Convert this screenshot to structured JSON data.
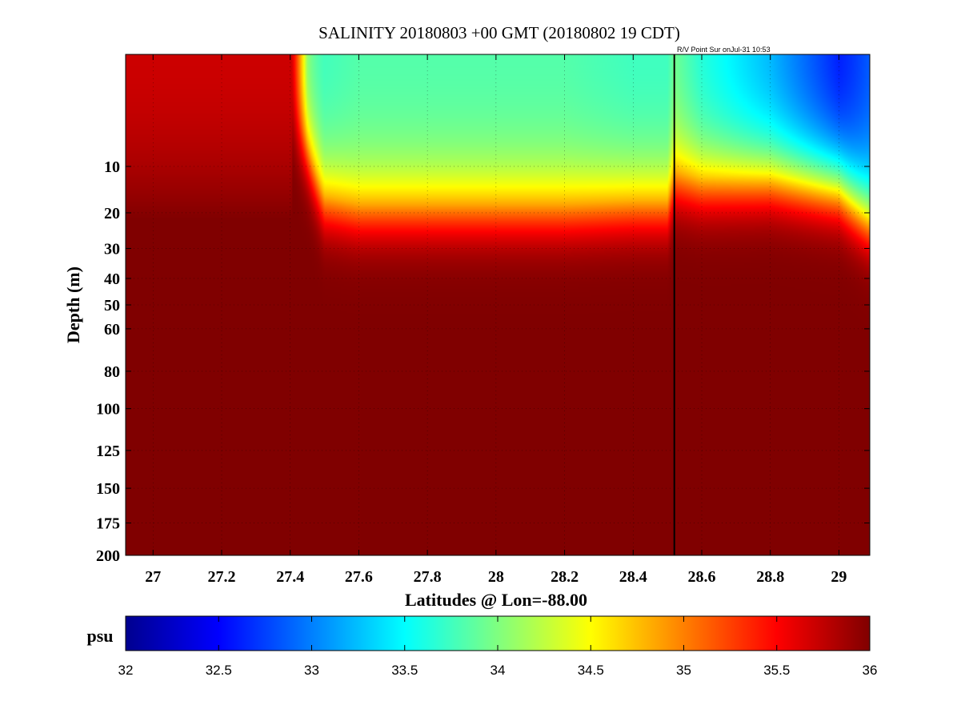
{
  "chart_data": {
    "type": "heatmap",
    "title": "SALINITY 20180803 +00 GMT (20180802 19 CDT)",
    "annotation": "R/V Point Sur onJul-31 10:53",
    "xlabel": "Latitudes @ Lon=-88.00",
    "ylabel": "Depth (m)",
    "x_ticks": [
      27,
      27.2,
      27.4,
      27.6,
      27.8,
      28,
      28.2,
      28.4,
      28.6,
      28.8,
      29
    ],
    "x_tick_labels": [
      "27",
      "27.2",
      "27.4",
      "27.6",
      "27.8",
      "28",
      "28.2",
      "28.4",
      "28.6",
      "28.8",
      "29"
    ],
    "xlim": [
      26.92,
      29.09
    ],
    "y_ticks": [
      10,
      20,
      30,
      40,
      50,
      60,
      80,
      100,
      125,
      150,
      175,
      200
    ],
    "y_tick_labels": [
      "10",
      "20",
      "30",
      "40",
      "50",
      "60",
      "80",
      "100",
      "125",
      "150",
      "175",
      "200"
    ],
    "ylim": [
      0,
      200
    ],
    "y_scale": "sqrt",
    "y_reversed": true,
    "grid": true,
    "vertical_marker_lat": 28.52,
    "colorbar": {
      "label": "psu",
      "range": [
        32,
        36
      ],
      "ticks": [
        32,
        32.5,
        33,
        33.5,
        34,
        34.5,
        35,
        35.5,
        36
      ],
      "tick_labels": [
        "32",
        "32.5",
        "33",
        "33.5",
        "34",
        "34.5",
        "35",
        "35.5",
        "36"
      ],
      "colormap": "jet"
    },
    "salinity_field": {
      "note_lat": [
        26.92,
        27.2,
        27.4,
        27.45,
        27.5,
        27.6,
        27.8,
        28.0,
        28.2,
        28.4,
        28.5,
        28.52,
        28.6,
        28.8,
        29.0,
        29.09
      ],
      "surface_salinity_psu": [
        35.7,
        35.7,
        35.6,
        33.6,
        33.6,
        33.7,
        33.7,
        33.7,
        33.7,
        33.6,
        33.6,
        33.7,
        33.4,
        32.9,
        32.3,
        32.7
      ],
      "halocline_depth_m": [
        0,
        0,
        0,
        6,
        16,
        18,
        18,
        18,
        18,
        17,
        17,
        11,
        12,
        11,
        13,
        20
      ],
      "deep_salinity_psu": 36.0,
      "near_surface_salinity_psu": 35.7
    }
  },
  "colors": {
    "background": "#ffffff",
    "axis": "#000000",
    "deep_water": "#800000"
  }
}
